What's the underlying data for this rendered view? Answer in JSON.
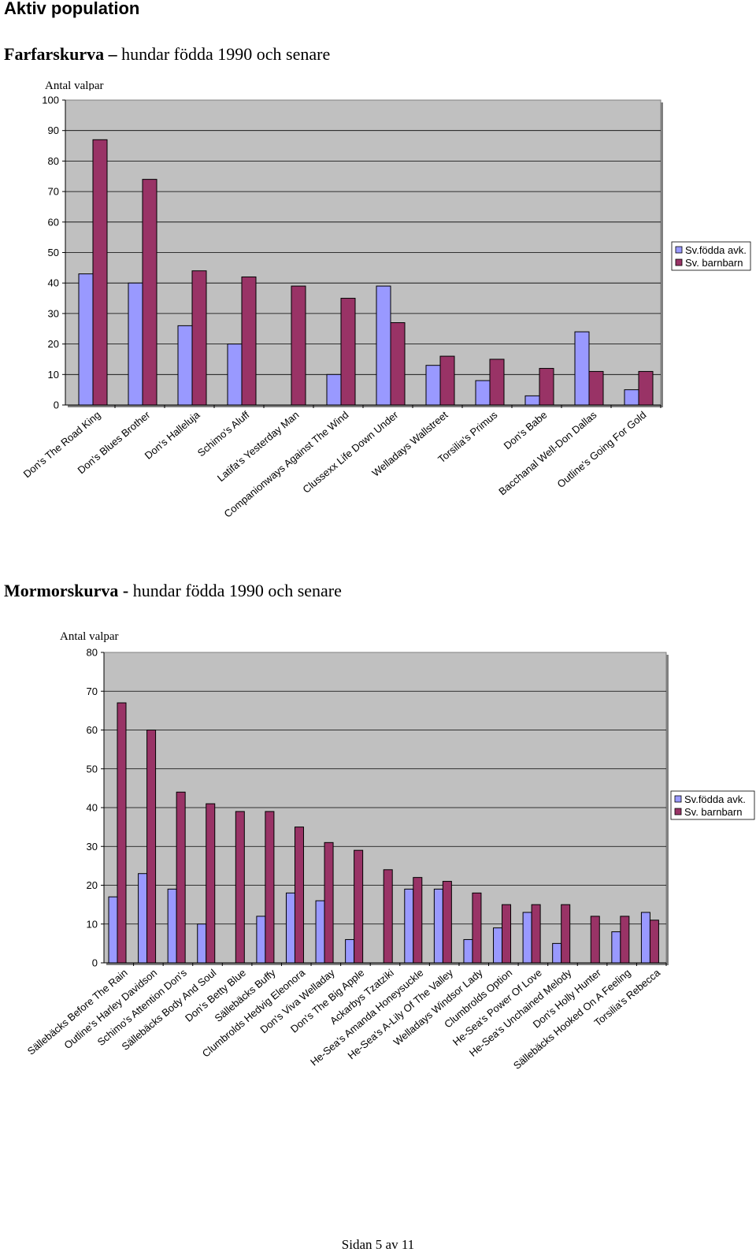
{
  "page_heading": "Aktiv population",
  "footer": "Sidan 5 av 11",
  "chart_data": [
    {
      "type": "bar",
      "title_bold": "Farfarskurva –",
      "title_rest": " hundar födda 1990 och senare",
      "ylabel": "Antal valpar",
      "xlabel": "",
      "ylim": [
        0,
        100
      ],
      "yticks": [
        0,
        10,
        20,
        30,
        40,
        50,
        60,
        70,
        80,
        90,
        100
      ],
      "grid": true,
      "legend_position": "right",
      "colors": [
        "#9999ff",
        "#993366"
      ],
      "categories": [
        "Don's The Road King",
        "Don's Blues Brother",
        "Don's Halleluja",
        "Schimo's Aluff",
        "Latifa's Yesterday Man",
        "Companionways Against The Wind",
        "Clussexx Life Down Under",
        "Welladays Wallstreet",
        "Torsilia's Primus",
        "Don's Babe",
        "Bacchanal Well-Don Dallas",
        "Outline's Going For Gold"
      ],
      "series": [
        {
          "name": "Sv.födda avk.",
          "values": [
            43,
            40,
            26,
            20,
            0,
            10,
            39,
            13,
            8,
            3,
            24,
            5
          ]
        },
        {
          "name": "Sv. barnbarn",
          "values": [
            87,
            74,
            44,
            42,
            39,
            35,
            27,
            16,
            15,
            12,
            11,
            11
          ]
        }
      ]
    },
    {
      "type": "bar",
      "title_bold": "Mormorskurva -",
      "title_rest": " hundar födda 1990 och senare",
      "ylabel": "Antal valpar",
      "xlabel": "",
      "ylim": [
        0,
        80
      ],
      "yticks": [
        0,
        10,
        20,
        30,
        40,
        50,
        60,
        70,
        80
      ],
      "grid": true,
      "legend_position": "right",
      "colors": [
        "#9999ff",
        "#993366"
      ],
      "categories": [
        "Sällebäcks Before The Rain",
        "Outline's Harley Davidson",
        "Schimo's Attention Don's",
        "Sällebäcks Body And Soul",
        "Don's Betty Blue",
        "Sällebäcks Buffy",
        "Clumbrolds Hedvig Eleonora",
        "Don's Viva Welladay",
        "Don's The Big Apple",
        "Ackarbys Tzatziki",
        "He-Sea's Amanda Honeysuckle",
        "He-Sea's A-Lily Of The Valley",
        "Welladays Windsor Lady",
        "Clumbrolds Option",
        "He-Sea's Power Of Love",
        "He-Sea's Unchained Melody",
        "Don's Holly Hunter",
        "Sällebäcks Hooked On A Feeling",
        "Torsilia's Rebecca"
      ],
      "series": [
        {
          "name": "Sv.födda avk.",
          "values": [
            17,
            23,
            19,
            10,
            0,
            12,
            18,
            16,
            6,
            0,
            19,
            19,
            6,
            9,
            13,
            5,
            0,
            8,
            13
          ]
        },
        {
          "name": "Sv. barnbarn",
          "values": [
            67,
            60,
            44,
            41,
            39,
            39,
            35,
            31,
            29,
            24,
            22,
            21,
            18,
            15,
            15,
            15,
            12,
            12,
            11
          ]
        }
      ]
    }
  ]
}
